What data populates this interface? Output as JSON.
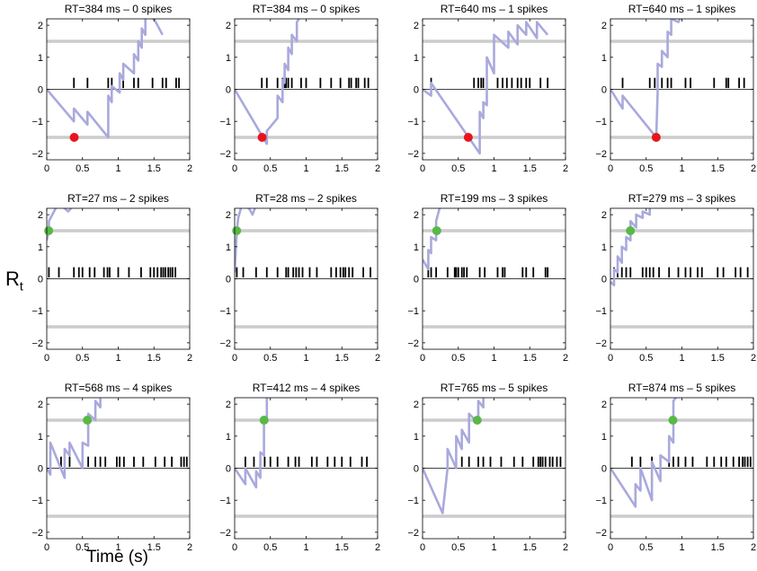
{
  "figure": {
    "ylabel_main": "R",
    "ylabel_sub": "t",
    "xlabel": "Time (s)"
  },
  "style": {
    "trajectory_color": "#a9a9dd",
    "threshold_color": "#cccccc",
    "spike_color": "#000000",
    "red_marker": "#e8141c",
    "green_marker": "#58b947"
  },
  "chart_data": [
    {
      "type": "line",
      "title": "RT=384 ms – 0 spikes",
      "xlim": [
        0,
        2
      ],
      "ylim": [
        -2.2,
        2.2
      ],
      "xticks": [
        "0",
        "0.5",
        "1",
        "1.5",
        "2"
      ],
      "yticks": [
        "−2",
        "−1",
        "0",
        "1",
        "2"
      ],
      "thresholds": [
        1.5,
        -1.5
      ],
      "marker": {
        "x": 0.384,
        "y": -1.5,
        "color": "red"
      },
      "spikes": [
        0.38,
        0.57,
        0.86,
        0.91,
        1.02,
        1.07,
        1.22,
        1.28,
        1.48,
        1.62,
        1.67,
        1.81,
        1.85
      ],
      "trajectory": [
        [
          0,
          0
        ],
        [
          0.38,
          -1.0
        ],
        [
          0.38,
          -0.6
        ],
        [
          0.57,
          -1.1
        ],
        [
          0.57,
          -0.7
        ],
        [
          0.86,
          -1.5
        ],
        [
          0.86,
          -0.2
        ],
        [
          0.91,
          -0.4
        ],
        [
          0.91,
          0.1
        ],
        [
          1.02,
          -0.1
        ],
        [
          1.02,
          0.5
        ],
        [
          1.07,
          0.3
        ],
        [
          1.07,
          0.8
        ],
        [
          1.22,
          0.5
        ],
        [
          1.22,
          1.1
        ],
        [
          1.28,
          0.9
        ],
        [
          1.28,
          1.5
        ],
        [
          1.33,
          1.3
        ],
        [
          1.33,
          1.9
        ],
        [
          1.38,
          1.7
        ],
        [
          1.38,
          2.3
        ],
        [
          1.5,
          2.2
        ],
        [
          1.62,
          1.7
        ]
      ]
    },
    {
      "type": "line",
      "title": "RT=384 ms – 0 spikes",
      "xlim": [
        0,
        2
      ],
      "ylim": [
        -2.2,
        2.2
      ],
      "xticks": [
        "0",
        "0.5",
        "1",
        "1.5",
        "2"
      ],
      "yticks": [
        "−2",
        "−1",
        "0",
        "1",
        "2"
      ],
      "thresholds": [
        1.5,
        -1.5
      ],
      "marker": {
        "x": 0.384,
        "y": -1.5,
        "color": "red"
      },
      "spikes": [
        0.38,
        0.45,
        0.6,
        0.67,
        0.7,
        0.72,
        0.75,
        0.8,
        0.93,
        1.0,
        1.2,
        1.35,
        1.48,
        1.6,
        1.63,
        1.7,
        1.73,
        1.82,
        1.87
      ],
      "trajectory": [
        [
          0,
          0
        ],
        [
          0.45,
          -1.7
        ],
        [
          0.45,
          -1.3
        ],
        [
          0.6,
          -0.9
        ],
        [
          0.6,
          -0.2
        ],
        [
          0.67,
          -0.4
        ],
        [
          0.67,
          0.3
        ],
        [
          0.7,
          0.2
        ],
        [
          0.7,
          0.8
        ],
        [
          0.75,
          0.6
        ],
        [
          0.75,
          1.3
        ],
        [
          0.8,
          1.1
        ],
        [
          0.8,
          1.7
        ],
        [
          0.87,
          1.5
        ],
        [
          0.87,
          2.1
        ],
        [
          0.93,
          2.3
        ]
      ]
    },
    {
      "type": "line",
      "title": "RT=640 ms – 1 spikes",
      "xlim": [
        0,
        2
      ],
      "ylim": [
        -2.2,
        2.2
      ],
      "xticks": [
        "0",
        "0.5",
        "1",
        "1.5",
        "2"
      ],
      "yticks": [
        "−2",
        "−1",
        "0",
        "1",
        "2"
      ],
      "thresholds": [
        1.5,
        -1.5
      ],
      "marker": {
        "x": 0.64,
        "y": -1.5,
        "color": "red"
      },
      "spikes": [
        0.12,
        0.72,
        0.78,
        0.82,
        0.85,
        0.9,
        1.05,
        1.12,
        1.18,
        1.25,
        1.33,
        1.38,
        1.45,
        1.5,
        1.65,
        1.75
      ],
      "trajectory": [
        [
          0,
          0
        ],
        [
          0.12,
          -0.2
        ],
        [
          0.12,
          0.2
        ],
        [
          0.8,
          -2.0
        ],
        [
          0.8,
          -0.7
        ],
        [
          0.85,
          -0.9
        ],
        [
          0.85,
          -0.4
        ],
        [
          0.9,
          -0.5
        ],
        [
          0.9,
          1.0
        ],
        [
          1.0,
          0.5
        ],
        [
          1.0,
          1.7
        ],
        [
          1.2,
          1.3
        ],
        [
          1.2,
          1.8
        ],
        [
          1.33,
          1.4
        ],
        [
          1.33,
          2.0
        ],
        [
          1.45,
          1.7
        ],
        [
          1.45,
          2.1
        ],
        [
          1.6,
          1.6
        ],
        [
          1.6,
          2.1
        ],
        [
          1.75,
          1.7
        ]
      ]
    },
    {
      "type": "line",
      "title": "RT=640 ms – 1 spikes",
      "xlim": [
        0,
        2
      ],
      "ylim": [
        -2.2,
        2.2
      ],
      "xticks": [
        "0",
        "0.5",
        "1",
        "1.5",
        "2"
      ],
      "yticks": [
        "−2",
        "−1",
        "0",
        "1",
        "2"
      ],
      "thresholds": [
        1.5,
        -1.5
      ],
      "marker": {
        "x": 0.64,
        "y": -1.5,
        "color": "red"
      },
      "spikes": [
        0.17,
        0.55,
        0.62,
        0.66,
        0.72,
        0.8,
        0.85,
        1.05,
        1.12,
        1.45,
        1.62,
        1.65,
        1.8,
        1.87
      ],
      "trajectory": [
        [
          0,
          0
        ],
        [
          0.17,
          -0.6
        ],
        [
          0.17,
          -0.2
        ],
        [
          0.64,
          -1.5
        ],
        [
          0.66,
          -0.1
        ],
        [
          0.66,
          0.8
        ],
        [
          0.72,
          0.7
        ],
        [
          0.72,
          1.2
        ],
        [
          0.8,
          1.0
        ],
        [
          0.8,
          1.8
        ],
        [
          0.85,
          1.7
        ],
        [
          0.85,
          2.2
        ],
        [
          0.95,
          2.1
        ],
        [
          1.0,
          2.3
        ]
      ]
    },
    {
      "type": "line",
      "title": "RT=27 ms – 2 spikes",
      "xlim": [
        0,
        2
      ],
      "ylim": [
        -2.2,
        2.2
      ],
      "xticks": [
        "0",
        "0.5",
        "1",
        "1.5",
        "2"
      ],
      "yticks": [
        "−2",
        "−1",
        "0",
        "1",
        "2"
      ],
      "thresholds": [
        1.5,
        -1.5
      ],
      "marker": {
        "x": 0.027,
        "y": 1.5,
        "color": "green"
      },
      "spikes": [
        0.03,
        0.17,
        0.38,
        0.45,
        0.5,
        0.6,
        0.67,
        0.8,
        0.85,
        0.88,
        1.0,
        1.15,
        1.32,
        1.45,
        1.5,
        1.55,
        1.6,
        1.63,
        1.66,
        1.7,
        1.73,
        1.76,
        1.8
      ],
      "trajectory": [
        [
          0,
          1.2
        ],
        [
          0.03,
          1.5
        ],
        [
          0.03,
          1.8
        ],
        [
          0.15,
          2.3
        ],
        [
          0.2,
          2.3
        ],
        [
          0.3,
          2.1
        ],
        [
          0.38,
          2.3
        ],
        [
          0.45,
          2.3
        ]
      ]
    },
    {
      "type": "line",
      "title": "RT=28 ms – 2 spikes",
      "xlim": [
        0,
        2
      ],
      "ylim": [
        -2.2,
        2.2
      ],
      "xticks": [
        "0",
        "0.5",
        "1",
        "1.5",
        "2"
      ],
      "yticks": [
        "−2",
        "−1",
        "0",
        "1",
        "2"
      ],
      "thresholds": [
        1.5,
        -1.5
      ],
      "marker": {
        "x": 0.028,
        "y": 1.5,
        "color": "green"
      },
      "spikes": [
        0.03,
        0.12,
        0.3,
        0.45,
        0.6,
        0.72,
        0.75,
        0.82,
        0.86,
        0.9,
        0.95,
        1.05,
        1.15,
        1.35,
        1.42,
        1.48,
        1.52,
        1.55,
        1.6,
        1.65,
        1.8,
        1.9
      ],
      "trajectory": [
        [
          0,
          0.2
        ],
        [
          0.03,
          1.5
        ],
        [
          0.05,
          1.9
        ],
        [
          0.1,
          2.3
        ],
        [
          0.2,
          2.2
        ],
        [
          0.25,
          2.0
        ],
        [
          0.3,
          2.3
        ]
      ]
    },
    {
      "type": "line",
      "title": "RT=199 ms – 3 spikes",
      "xlim": [
        0,
        2
      ],
      "ylim": [
        -2.2,
        2.2
      ],
      "xticks": [
        "0",
        "0.5",
        "1",
        "1.5",
        "2"
      ],
      "yticks": [
        "−2",
        "−1",
        "0",
        "1",
        "2"
      ],
      "thresholds": [
        1.5,
        -1.5
      ],
      "marker": {
        "x": 0.199,
        "y": 1.5,
        "color": "green"
      },
      "spikes": [
        0.08,
        0.12,
        0.19,
        0.35,
        0.45,
        0.47,
        0.5,
        0.55,
        0.58,
        0.62,
        0.8,
        0.87,
        1.05,
        1.12,
        1.15,
        1.4,
        1.45,
        1.55,
        1.72,
        1.75
      ],
      "trajectory": [
        [
          0,
          0.6
        ],
        [
          0.08,
          0.3
        ],
        [
          0.08,
          0.9
        ],
        [
          0.12,
          0.8
        ],
        [
          0.12,
          1.3
        ],
        [
          0.19,
          1.2
        ],
        [
          0.19,
          1.8
        ],
        [
          0.25,
          2.3
        ]
      ]
    },
    {
      "type": "line",
      "title": "RT=279 ms – 3 spikes",
      "xlim": [
        0,
        2
      ],
      "ylim": [
        -2.2,
        2.2
      ],
      "xticks": [
        "0",
        "0.5",
        "1",
        "1.5",
        "2"
      ],
      "yticks": [
        "−2",
        "−1",
        "0",
        "1",
        "2"
      ],
      "thresholds": [
        1.5,
        -1.5
      ],
      "marker": {
        "x": 0.279,
        "y": 1.5,
        "color": "green"
      },
      "spikes": [
        0.05,
        0.1,
        0.16,
        0.22,
        0.28,
        0.45,
        0.5,
        0.55,
        0.6,
        0.68,
        0.82,
        0.95,
        1.05,
        1.12,
        1.22,
        1.28,
        1.5,
        1.58,
        1.75,
        1.82,
        1.92
      ],
      "trajectory": [
        [
          0,
          -0.1
        ],
        [
          0.05,
          -0.2
        ],
        [
          0.05,
          0.3
        ],
        [
          0.1,
          0.2
        ],
        [
          0.1,
          0.7
        ],
        [
          0.16,
          0.5
        ],
        [
          0.16,
          1.0
        ],
        [
          0.22,
          0.9
        ],
        [
          0.22,
          1.3
        ],
        [
          0.28,
          1.2
        ],
        [
          0.28,
          1.8
        ],
        [
          0.36,
          1.6
        ],
        [
          0.36,
          2.0
        ],
        [
          0.45,
          1.9
        ],
        [
          0.45,
          2.1
        ],
        [
          0.55,
          2.0
        ],
        [
          0.55,
          2.3
        ]
      ]
    },
    {
      "type": "line",
      "title": "RT=568 ms – 4 spikes",
      "xlim": [
        0,
        2
      ],
      "ylim": [
        -2.2,
        2.2
      ],
      "xticks": [
        "0",
        "0.5",
        "1",
        "1.5",
        "2"
      ],
      "yticks": [
        "−2",
        "−1",
        "0",
        "1",
        "2"
      ],
      "thresholds": [
        1.5,
        -1.5
      ],
      "marker": {
        "x": 0.568,
        "y": 1.5,
        "color": "green"
      },
      "spikes": [
        0.05,
        0.2,
        0.32,
        0.5,
        0.58,
        0.68,
        0.75,
        0.82,
        0.98,
        1.02,
        1.08,
        1.22,
        1.35,
        1.52,
        1.65,
        1.75,
        1.88,
        1.92,
        1.96
      ],
      "trajectory": [
        [
          0,
          0
        ],
        [
          0.05,
          -0.2
        ],
        [
          0.05,
          0.8
        ],
        [
          0.25,
          -0.3
        ],
        [
          0.25,
          0.6
        ],
        [
          0.32,
          0.4
        ],
        [
          0.32,
          0.8
        ],
        [
          0.5,
          0.0
        ],
        [
          0.5,
          0.8
        ],
        [
          0.58,
          0.7
        ],
        [
          0.58,
          1.7
        ],
        [
          0.68,
          1.5
        ],
        [
          0.68,
          2.1
        ],
        [
          0.75,
          1.9
        ],
        [
          0.75,
          2.3
        ]
      ]
    },
    {
      "type": "line",
      "title": "RT=412 ms – 4 spikes",
      "xlim": [
        0,
        2
      ],
      "ylim": [
        -2.2,
        2.2
      ],
      "xticks": [
        "0",
        "0.5",
        "1",
        "1.5",
        "2"
      ],
      "yticks": [
        "−2",
        "−1",
        "0",
        "1",
        "2"
      ],
      "thresholds": [
        1.5,
        -1.5
      ],
      "marker": {
        "x": 0.412,
        "y": 1.5,
        "color": "green"
      },
      "spikes": [
        0.15,
        0.27,
        0.36,
        0.42,
        0.5,
        0.6,
        0.75,
        0.85,
        0.9,
        1.08,
        1.15,
        1.3,
        1.4,
        1.5,
        1.62,
        1.78,
        1.85
      ],
      "trajectory": [
        [
          0,
          0
        ],
        [
          0.15,
          -0.5
        ],
        [
          0.15,
          0.0
        ],
        [
          0.3,
          -0.6
        ],
        [
          0.3,
          -0.1
        ],
        [
          0.36,
          -0.3
        ],
        [
          0.36,
          0.5
        ],
        [
          0.41,
          0.4
        ],
        [
          0.41,
          1.6
        ],
        [
          0.45,
          1.6
        ],
        [
          0.45,
          2.3
        ]
      ]
    },
    {
      "type": "line",
      "title": "RT=765 ms – 5 spikes",
      "xlim": [
        0,
        2
      ],
      "ylim": [
        -2.2,
        2.2
      ],
      "xticks": [
        "0",
        "0.5",
        "1",
        "1.5",
        "2"
      ],
      "yticks": [
        "−2",
        "−1",
        "0",
        "1",
        "2"
      ],
      "thresholds": [
        1.5,
        -1.5
      ],
      "marker": {
        "x": 0.765,
        "y": 1.5,
        "color": "green"
      },
      "spikes": [
        0.35,
        0.47,
        0.55,
        0.65,
        0.78,
        0.85,
        0.95,
        1.1,
        1.28,
        1.4,
        1.55,
        1.62,
        1.65,
        1.68,
        1.72,
        1.78,
        1.82,
        1.88,
        1.93
      ],
      "trajectory": [
        [
          0,
          0
        ],
        [
          0.28,
          -1.4
        ],
        [
          0.35,
          0.0
        ],
        [
          0.35,
          0.6
        ],
        [
          0.47,
          0.0
        ],
        [
          0.47,
          1.0
        ],
        [
          0.55,
          0.6
        ],
        [
          0.55,
          1.2
        ],
        [
          0.65,
          0.8
        ],
        [
          0.65,
          1.7
        ],
        [
          0.78,
          1.4
        ],
        [
          0.78,
          2.1
        ],
        [
          0.85,
          1.9
        ],
        [
          0.85,
          2.3
        ]
      ]
    },
    {
      "type": "line",
      "title": "RT=874 ms – 5 spikes",
      "xlim": [
        0,
        2
      ],
      "ylim": [
        -2.2,
        2.2
      ],
      "xticks": [
        "0",
        "0.5",
        "1",
        "1.5",
        "2"
      ],
      "yticks": [
        "−2",
        "−1",
        "0",
        "1",
        "2"
      ],
      "thresholds": [
        1.5,
        -1.5
      ],
      "marker": {
        "x": 0.874,
        "y": 1.5,
        "color": "green"
      },
      "spikes": [
        0.3,
        0.42,
        0.58,
        0.7,
        0.82,
        0.88,
        0.95,
        1.05,
        1.15,
        1.35,
        1.45,
        1.55,
        1.62,
        1.72,
        1.8,
        1.85,
        1.88,
        1.92,
        1.96
      ],
      "trajectory": [
        [
          0,
          0
        ],
        [
          0.35,
          -1.2
        ],
        [
          0.35,
          -0.5
        ],
        [
          0.42,
          -0.7
        ],
        [
          0.42,
          0.0
        ],
        [
          0.58,
          -1.0
        ],
        [
          0.58,
          0.2
        ],
        [
          0.7,
          -0.4
        ],
        [
          0.7,
          0.4
        ],
        [
          0.82,
          0.2
        ],
        [
          0.82,
          1.0
        ],
        [
          0.88,
          0.8
        ],
        [
          0.88,
          2.1
        ],
        [
          0.95,
          2.3
        ]
      ]
    }
  ]
}
